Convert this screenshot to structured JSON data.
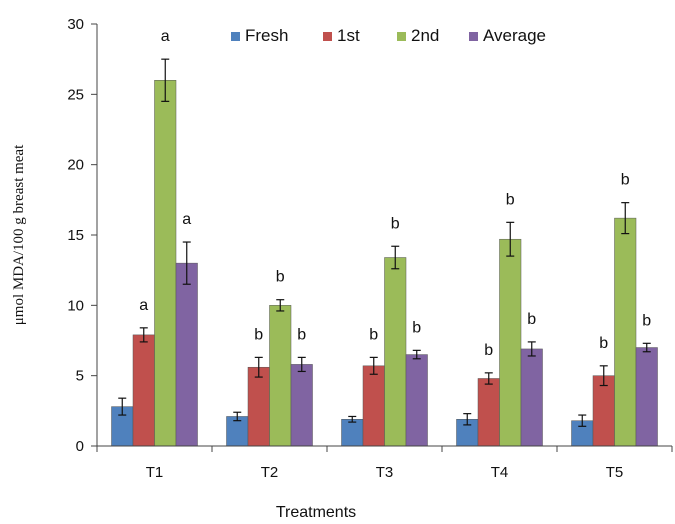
{
  "chart_data": {
    "type": "bar",
    "xlabel": "Treatments",
    "ylabel": "μmol MDA/100 g breast meat",
    "ylim": [
      0,
      30
    ],
    "yticks": [
      0,
      5,
      10,
      15,
      20,
      25,
      30
    ],
    "categories": [
      "T1",
      "T2",
      "T3",
      "T4",
      "T5"
    ],
    "legend_position": "top",
    "series": [
      {
        "name": "Fresh",
        "color": "#4F81BD",
        "values": [
          2.8,
          2.1,
          1.9,
          1.9,
          1.8
        ],
        "errors": [
          0.6,
          0.3,
          0.2,
          0.4,
          0.4
        ],
        "labels": [
          "",
          "",
          "",
          "",
          ""
        ]
      },
      {
        "name": "1st",
        "color": "#C0504D",
        "values": [
          7.9,
          5.6,
          5.7,
          4.8,
          5.0
        ],
        "errors": [
          0.5,
          0.7,
          0.6,
          0.4,
          0.7
        ],
        "labels": [
          "a",
          "b",
          "b",
          "b",
          "b"
        ]
      },
      {
        "name": "2nd",
        "color": "#9BBB59",
        "values": [
          26.0,
          10.0,
          13.4,
          14.7,
          16.2
        ],
        "errors": [
          1.5,
          0.4,
          0.8,
          1.2,
          1.1
        ],
        "labels": [
          "a",
          "b",
          "b",
          "b",
          "b"
        ]
      },
      {
        "name": "Average",
        "color": "#8064A2",
        "values": [
          13.0,
          5.8,
          6.5,
          6.9,
          7.0
        ],
        "errors": [
          1.5,
          0.5,
          0.3,
          0.5,
          0.3
        ],
        "labels": [
          "a",
          "b",
          "b",
          "b",
          "b"
        ]
      }
    ]
  }
}
